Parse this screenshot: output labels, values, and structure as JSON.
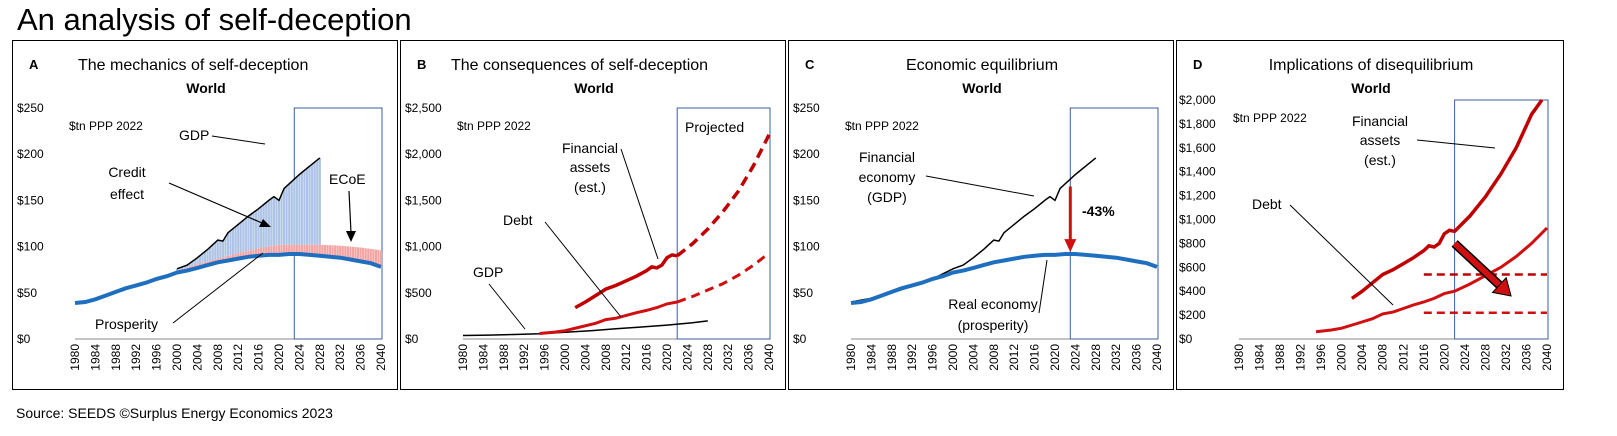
{
  "page": {
    "title": "An analysis of self-deception",
    "source": "Source: SEEDS   ©Surplus Energy Economics 2023"
  },
  "colors": {
    "blue": "#1f6fc0",
    "red": "#d01010",
    "dark_red": "#c00000",
    "light_blue_bars": "#aec4e6",
    "pink_bars": "#f4a3a3",
    "box": "#3a5f9f"
  },
  "chart_data": [
    {
      "panel": "A",
      "type": "line",
      "letter": "A",
      "title": "The mechanics of self-deception",
      "subtitle": "World",
      "unit": "$tn PPP 2022",
      "ylim": [
        0,
        250
      ],
      "yticks": [
        "$0",
        "$50",
        "$100",
        "$150",
        "$200",
        "$250"
      ],
      "xlim": [
        1980,
        2040
      ],
      "xticks": [
        "1980",
        "1984",
        "1988",
        "1992",
        "1996",
        "2000",
        "2004",
        "2008",
        "2012",
        "2016",
        "2020",
        "2024",
        "2028",
        "2032",
        "2036",
        "2040"
      ],
      "projection_box": [
        2023,
        2040
      ],
      "series": [
        {
          "name": "GDP",
          "x": [
            2000,
            2002,
            2004,
            2006,
            2008,
            2009,
            2010,
            2012,
            2014,
            2016,
            2018,
            2019,
            2020,
            2021,
            2022,
            2024,
            2026,
            2028
          ],
          "y": [
            76,
            80,
            88,
            97,
            107,
            106,
            115,
            124,
            133,
            141,
            150,
            154,
            150,
            163,
            168,
            178,
            187,
            196
          ]
        },
        {
          "name": "Prosperity",
          "x": [
            1980,
            1982,
            1984,
            1986,
            1988,
            1990,
            1992,
            1994,
            1996,
            1998,
            2000,
            2002,
            2004,
            2006,
            2008,
            2010,
            2012,
            2014,
            2016,
            2018,
            2020,
            2022,
            2024,
            2026,
            2028,
            2030,
            2032,
            2034,
            2036,
            2038,
            2040
          ],
          "y": [
            39,
            40,
            43,
            47,
            51,
            55,
            58,
            61,
            65,
            68,
            72,
            74,
            77,
            80,
            83,
            85,
            87,
            89,
            90,
            91,
            91,
            92,
            92,
            91,
            90,
            89,
            88,
            86,
            84,
            82,
            78
          ]
        },
        {
          "name": "ECoE",
          "x": [
            2000,
            2004,
            2008,
            2012,
            2016,
            2020,
            2024,
            2028,
            2032,
            2036,
            2040
          ],
          "y": [
            74,
            81,
            87,
            93,
            98,
            102,
            102,
            102,
            101,
            99,
            96
          ]
        }
      ],
      "bar_series": [
        {
          "name": "Credit effect",
          "from": 2000,
          "to": 2028,
          "top": "GDP",
          "bottom": "Prosperity"
        },
        {
          "name": "ECoE",
          "from": 2000,
          "to": 2040,
          "top": "ECoE",
          "bottom": "Prosperity"
        }
      ],
      "annotations": [
        "GDP",
        "Credit",
        "effect",
        "ECoE",
        "Prosperity"
      ]
    },
    {
      "panel": "B",
      "type": "line",
      "letter": "B",
      "title": "The consequences of self-deception",
      "subtitle": "World",
      "unit": "$tn PPP 2022",
      "ylim": [
        0,
        2500
      ],
      "yticks": [
        "$0",
        "$500",
        "$1,000",
        "$1,500",
        "$2,000",
        "$2,500"
      ],
      "xlim": [
        1980,
        2040
      ],
      "xticks": [
        "1980",
        "1982",
        "1984",
        "1986",
        "1988",
        "1990",
        "1992",
        "1994",
        "1996",
        "1998",
        "2000",
        "2002",
        "2004",
        "2006",
        "2008",
        "2010",
        "2012",
        "2014",
        "2016",
        "2018",
        "2020",
        "2022",
        "2024",
        "2026",
        "2028",
        "2030",
        "2032",
        "2034",
        "2036",
        "2038",
        "2040"
      ],
      "xtick_labels_shown": [
        "1980",
        "1984",
        "1988",
        "1992",
        "1996",
        "2000",
        "2004",
        "2008",
        "2012",
        "2016",
        "2020",
        "2024",
        "2028",
        "2032",
        "2036",
        "2040"
      ],
      "projection_box": [
        2022,
        2040
      ],
      "projection_label": "Projected",
      "series": [
        {
          "name": "GDP",
          "x": [
            1980,
            1985,
            1990,
            1995,
            2000,
            2005,
            2010,
            2015,
            2020,
            2025,
            2028
          ],
          "y": [
            38,
            42,
            49,
            56,
            72,
            90,
            110,
            130,
            150,
            175,
            196
          ]
        },
        {
          "name": "Debt",
          "x": [
            1995,
            1998,
            2000,
            2003,
            2006,
            2008,
            2010,
            2012,
            2014,
            2016,
            2018,
            2020,
            2022
          ],
          "y": [
            60,
            75,
            90,
            130,
            170,
            210,
            225,
            255,
            285,
            310,
            340,
            380,
            400
          ]
        },
        {
          "name": "Debt (projected)",
          "x": [
            2022,
            2025,
            2028,
            2031,
            2034,
            2037,
            2040
          ],
          "y": [
            400,
            460,
            530,
            600,
            690,
            800,
            930
          ]
        },
        {
          "name": "Financial assets (est.)",
          "x": [
            2002,
            2004,
            2006,
            2008,
            2010,
            2012,
            2014,
            2016,
            2017,
            2018,
            2019,
            2020,
            2021,
            2022
          ],
          "y": [
            340,
            400,
            470,
            540,
            580,
            630,
            680,
            740,
            780,
            770,
            800,
            880,
            910,
            900
          ]
        },
        {
          "name": "Financial assets (projected)",
          "x": [
            2022,
            2025,
            2028,
            2031,
            2034,
            2037,
            2040
          ],
          "y": [
            900,
            1030,
            1190,
            1380,
            1600,
            1880,
            2210
          ]
        }
      ],
      "annotations": [
        "Financial",
        "assets",
        "(est.)",
        "Debt",
        "GDP",
        "Projected"
      ]
    },
    {
      "panel": "C",
      "type": "line",
      "letter": "C",
      "title": "Economic equilibrium",
      "subtitle": "World",
      "unit": "$tn PPP 2022",
      "ylim": [
        0,
        250
      ],
      "yticks": [
        "$0",
        "$50",
        "$100",
        "$150",
        "$200",
        "$250"
      ],
      "xlim": [
        1980,
        2040
      ],
      "xticks": [
        "1980",
        "1984",
        "1988",
        "1992",
        "1996",
        "2000",
        "2004",
        "2008",
        "2012",
        "2016",
        "2020",
        "2024",
        "2028",
        "2032",
        "2036",
        "2040"
      ],
      "projection_box": [
        2023,
        2040
      ],
      "series": [
        {
          "name": "Financial economy (GDP)",
          "x": [
            1980,
            1984,
            1988,
            1992,
            1996,
            2000,
            2002,
            2004,
            2006,
            2008,
            2009,
            2010,
            2012,
            2014,
            2016,
            2018,
            2019,
            2020,
            2021,
            2022,
            2024,
            2026,
            2028
          ],
          "y": [
            40,
            44,
            50,
            57,
            65,
            76,
            80,
            88,
            97,
            107,
            106,
            115,
            124,
            133,
            141,
            150,
            154,
            150,
            163,
            168,
            178,
            187,
            196
          ]
        },
        {
          "name": "Real economy (prosperity)",
          "x": [
            1980,
            1982,
            1984,
            1986,
            1988,
            1990,
            1992,
            1994,
            1996,
            1998,
            2000,
            2002,
            2004,
            2006,
            2008,
            2010,
            2012,
            2014,
            2016,
            2018,
            2020,
            2022,
            2024,
            2026,
            2028,
            2030,
            2032,
            2034,
            2036,
            2038,
            2040
          ],
          "y": [
            39,
            40,
            43,
            47,
            51,
            55,
            58,
            61,
            65,
            68,
            72,
            74,
            77,
            80,
            83,
            85,
            87,
            89,
            90,
            91,
            91,
            92,
            92,
            91,
            90,
            89,
            88,
            86,
            84,
            82,
            78
          ]
        }
      ],
      "arrow": {
        "label": "-43%",
        "x": 2023,
        "from": 165,
        "to": 94
      },
      "annotations": [
        "Financial",
        "economy",
        "(GDP)",
        "Real economy",
        "(prosperity)",
        "-43%"
      ]
    },
    {
      "panel": "D",
      "type": "line",
      "letter": "D",
      "title": "Implications of disequilibrium",
      "subtitle": "World",
      "unit": "$tn PPP 2022",
      "ylim": [
        0,
        2000
      ],
      "yticks": [
        "$0",
        "$200",
        "$400",
        "$600",
        "$800",
        "$1,000",
        "$1,200",
        "$1,400",
        "$1,600",
        "$1,800",
        "$2,000"
      ],
      "xlim": [
        1980,
        2040
      ],
      "xticks": [
        "1980",
        "1984",
        "1988",
        "1992",
        "1996",
        "2000",
        "2004",
        "2008",
        "2012",
        "2016",
        "2020",
        "2024",
        "2028",
        "2032",
        "2036",
        "2040"
      ],
      "projection_box": [
        2022,
        2040
      ],
      "series": [
        {
          "name": "Debt",
          "x": [
            1995,
            1998,
            2000,
            2003,
            2006,
            2008,
            2010,
            2012,
            2014,
            2016,
            2018,
            2020,
            2022,
            2025,
            2028,
            2031,
            2034,
            2037,
            2040
          ],
          "y": [
            60,
            75,
            90,
            130,
            170,
            210,
            225,
            255,
            285,
            310,
            340,
            380,
            400,
            460,
            530,
            600,
            690,
            800,
            930
          ]
        },
        {
          "name": "Financial assets (est.)",
          "x": [
            2002,
            2004,
            2006,
            2008,
            2010,
            2012,
            2014,
            2016,
            2017,
            2018,
            2019,
            2020,
            2021,
            2022,
            2025,
            2028,
            2031,
            2034,
            2037,
            2039
          ],
          "y": [
            340,
            400,
            470,
            540,
            580,
            630,
            680,
            740,
            780,
            770,
            800,
            880,
            910,
            900,
            1030,
            1190,
            1380,
            1600,
            1880,
            2000
          ]
        },
        {
          "name": "Upper reference",
          "x": [
            2016,
            2040
          ],
          "y": [
            540,
            540
          ]
        },
        {
          "name": "Lower reference",
          "x": [
            2016,
            2040
          ],
          "y": [
            220,
            220
          ]
        }
      ],
      "arrow": {
        "from": [
          2022,
          800
        ],
        "to": [
          2033,
          360
        ]
      },
      "annotations": [
        "Financial",
        "assets",
        "(est.)",
        "Debt"
      ]
    }
  ]
}
